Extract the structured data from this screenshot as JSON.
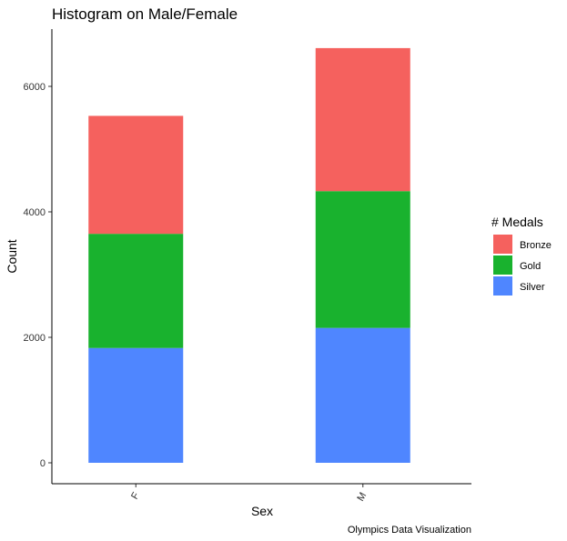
{
  "chart_data": {
    "type": "bar",
    "stacked": true,
    "title": "Histogram on Male/Female",
    "xlabel": "Sex",
    "ylabel": "Count",
    "categories": [
      "F",
      "M"
    ],
    "series": [
      {
        "name": "Silver",
        "color": "#4F86FF",
        "values": [
          1830,
          2150
        ]
      },
      {
        "name": "Gold",
        "color": "#19B22E",
        "values": [
          1820,
          2180
        ]
      },
      {
        "name": "Bronze",
        "color": "#F5615E",
        "values": [
          1880,
          2280
        ]
      }
    ],
    "legend_order": [
      "Bronze",
      "Gold",
      "Silver"
    ],
    "ylim": [
      0,
      6900
    ],
    "yticks": [
      0,
      2000,
      4000,
      6000
    ],
    "legend": {
      "title": "# Medals",
      "position": "right"
    },
    "caption": "Olympics Data Visualization",
    "grid": false
  }
}
